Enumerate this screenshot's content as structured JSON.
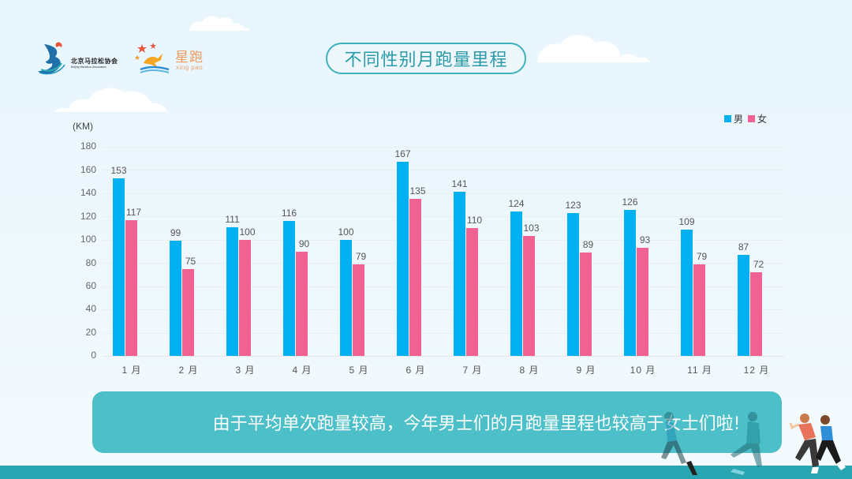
{
  "header": {
    "title": "不同性别月跑量里程",
    "logo_bma": {
      "name": "北京马拉松协会",
      "subtitle": "Beijing Marathon Association"
    },
    "logo_xingpao": {
      "name": "星跑",
      "pinyin": "xing pao"
    }
  },
  "chart": {
    "unit_label": "(KM)",
    "legend": [
      {
        "label": "男",
        "color": "#00b0f0"
      },
      {
        "label": "女",
        "color": "#f06292"
      }
    ],
    "y_ticks": [
      "180",
      "160",
      "140",
      "120",
      "100",
      "80",
      "60",
      "40",
      "20",
      "0"
    ],
    "x_labels": [
      "1 月",
      "2 月",
      "3 月",
      "4 月",
      "5 月",
      "6 月",
      "7 月",
      "8 月",
      "9 月",
      "10 月",
      "11 月",
      "12 月"
    ],
    "male_labels": [
      "153",
      "99",
      "111",
      "116",
      "100",
      "167",
      "141",
      "124",
      "123",
      "126",
      "109",
      "87"
    ],
    "female_labels": [
      "117",
      "75",
      "100",
      "90",
      "79",
      "135",
      "110",
      "103",
      "89",
      "93",
      "79",
      "72"
    ]
  },
  "chart_data": {
    "type": "bar",
    "title": "不同性别月跑量里程",
    "xlabel": "",
    "ylabel": "(KM)",
    "categories": [
      "1月",
      "2月",
      "3月",
      "4月",
      "5月",
      "6月",
      "7月",
      "8月",
      "9月",
      "10月",
      "11月",
      "12月"
    ],
    "series": [
      {
        "name": "男",
        "color": "#00b0f0",
        "values": [
          153,
          99,
          111,
          116,
          100,
          167,
          141,
          124,
          123,
          126,
          109,
          87
        ]
      },
      {
        "name": "女",
        "color": "#f06292",
        "values": [
          117,
          75,
          100,
          90,
          79,
          135,
          110,
          103,
          89,
          93,
          79,
          72
        ]
      }
    ],
    "ylim": [
      0,
      180
    ],
    "yticks": [
      0,
      20,
      40,
      60,
      80,
      100,
      120,
      140,
      160,
      180
    ],
    "grid": true,
    "legend_position": "top-right",
    "data_labels": true
  },
  "callout": {
    "text": "由于平均单次跑量较高，今年男士们的月跑量里程也较高于女士们啦!"
  }
}
